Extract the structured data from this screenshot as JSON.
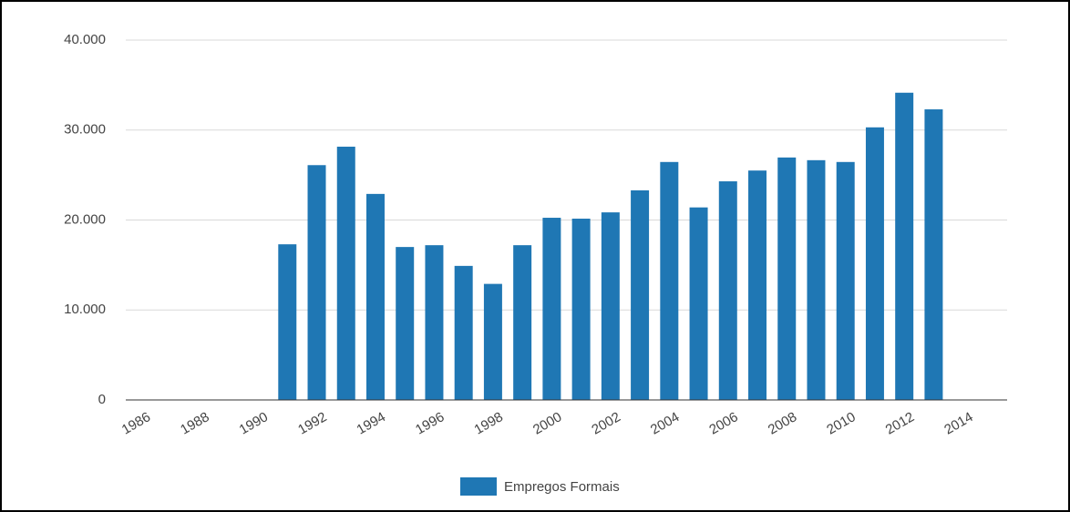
{
  "chart_data": {
    "type": "bar",
    "x": [
      1991,
      1992,
      1993,
      1994,
      1995,
      1996,
      1997,
      1998,
      1999,
      2000,
      2001,
      2002,
      2003,
      2004,
      2005,
      2006,
      2007,
      2008,
      2009,
      2010,
      2011,
      2012,
      2013
    ],
    "series": [
      {
        "name": "Empregos Formais",
        "color": "#1f77b4",
        "values": [
          17300,
          26100,
          28150,
          22900,
          17000,
          17200,
          14900,
          12900,
          17200,
          20250,
          20150,
          20850,
          23300,
          26450,
          21400,
          24300,
          25500,
          26950,
          26650,
          26450,
          30300,
          34150,
          32300
        ]
      }
    ],
    "xlim": [
      1985.5,
      2015.5
    ],
    "xticks": [
      1986,
      1988,
      1990,
      1992,
      1994,
      1996,
      1998,
      2000,
      2002,
      2004,
      2006,
      2008,
      2010,
      2012,
      2014
    ],
    "ylim": [
      0,
      40000
    ],
    "yticks": [
      0,
      {
        "value": 10000,
        "label": "10.000"
      },
      {
        "value": 20000,
        "label": "20.000"
      },
      {
        "value": 30000,
        "label": "30.000"
      },
      {
        "value": 40000,
        "label": "40.000"
      }
    ],
    "grid": true,
    "legend": "bottom"
  }
}
